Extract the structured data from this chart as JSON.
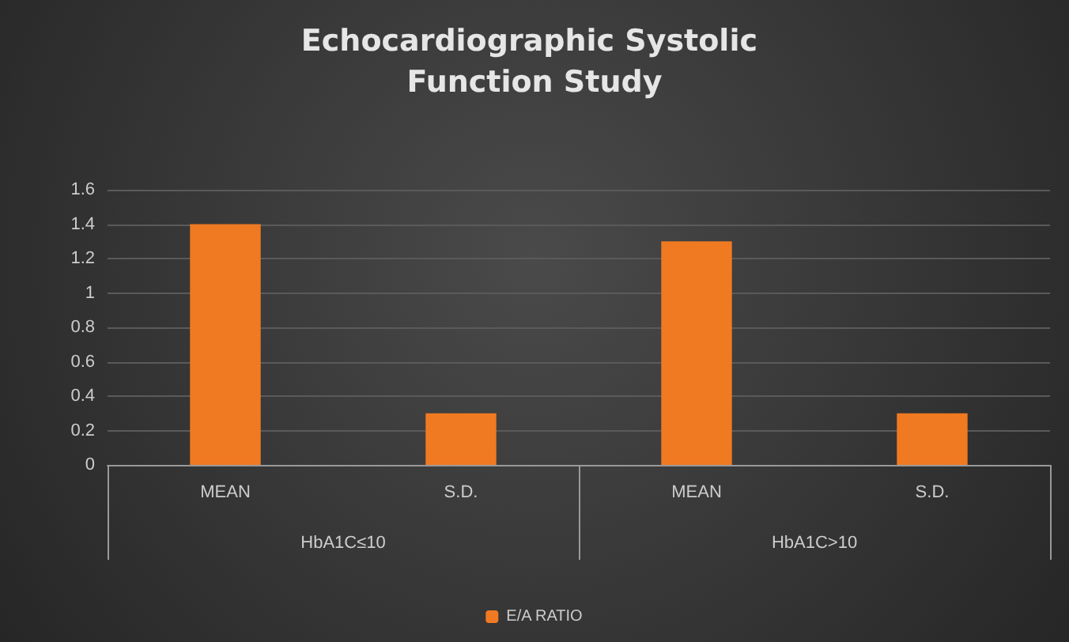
{
  "chart_data": {
    "type": "bar",
    "title": "Echocardiographic Systolic Function Study",
    "categories": [
      "MEAN",
      "S.D.",
      "MEAN",
      "S.D."
    ],
    "series": [
      {
        "name": "E/A RATIO",
        "color": "#f07a22",
        "values": [
          1.4,
          0.3,
          1.3,
          0.3
        ]
      }
    ],
    "annotations": [
      "HbA1C≤10",
      "HbA1C>10"
    ],
    "ylim": [
      0,
      1.6
    ],
    "yticks": [
      0,
      0.2,
      0.4,
      0.6,
      0.8,
      1,
      1.2,
      1.4,
      1.6
    ],
    "grid": "y",
    "legend": "bottom"
  }
}
